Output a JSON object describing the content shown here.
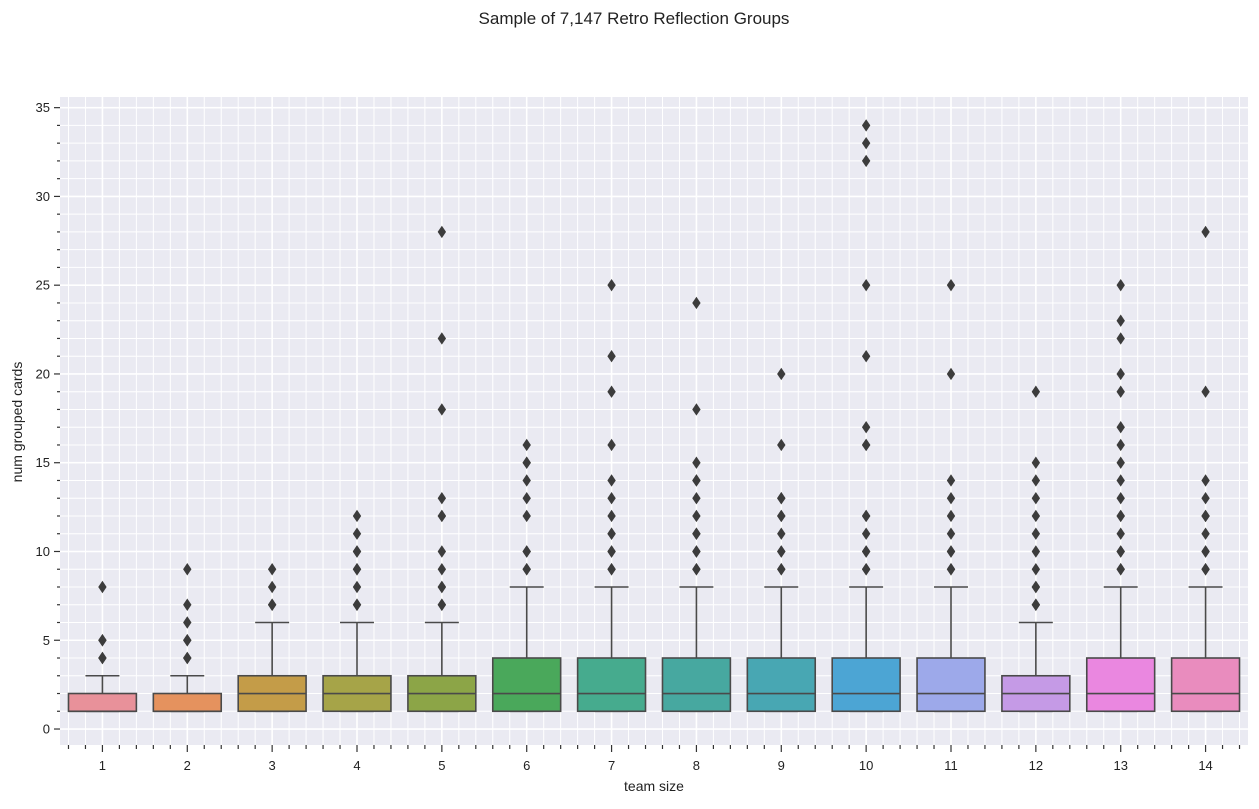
{
  "chart_data": {
    "type": "boxplot",
    "title": "Sample of 7,147 Retro Reflection Groups",
    "xlabel": "team size",
    "ylabel": "num grouped cards",
    "ylim": [
      0,
      35
    ],
    "yticks": [
      0,
      5,
      10,
      15,
      20,
      25,
      30,
      35
    ],
    "grid": true,
    "categories": [
      "1",
      "2",
      "3",
      "4",
      "5",
      "6",
      "7",
      "8",
      "9",
      "10",
      "11",
      "12",
      "13",
      "14"
    ],
    "boxes": [
      {
        "category": "1",
        "color": "#e8919a",
        "q1": 1,
        "median": 1,
        "q3": 2,
        "whisker_low": 1,
        "whisker_high": 3,
        "outliers": [
          4,
          4,
          5,
          5,
          8
        ]
      },
      {
        "category": "2",
        "color": "#e5925e",
        "q1": 1,
        "median": 1,
        "q3": 2,
        "whisker_low": 1,
        "whisker_high": 3,
        "outliers": [
          4,
          4,
          5,
          5,
          6,
          7,
          9
        ]
      },
      {
        "category": "3",
        "color": "#c49c48",
        "q1": 1,
        "median": 2,
        "q3": 3,
        "whisker_low": 1,
        "whisker_high": 6,
        "outliers": [
          7,
          7,
          8,
          9
        ]
      },
      {
        "category": "4",
        "color": "#a6a448",
        "q1": 1,
        "median": 2,
        "q3": 3,
        "whisker_low": 1,
        "whisker_high": 6,
        "outliers": [
          7,
          7,
          8,
          9,
          9,
          10,
          10,
          11,
          12
        ]
      },
      {
        "category": "5",
        "color": "#8ca547",
        "q1": 1,
        "median": 2,
        "q3": 3,
        "whisker_low": 1,
        "whisker_high": 6,
        "outliers": [
          7,
          7,
          8,
          8,
          9,
          10,
          12,
          12,
          13,
          18,
          22,
          28
        ]
      },
      {
        "category": "6",
        "color": "#4aa85b",
        "q1": 1,
        "median": 2,
        "q3": 4,
        "whisker_low": 1,
        "whisker_high": 8,
        "outliers": [
          9,
          9,
          10,
          10,
          12,
          13,
          14,
          15,
          15,
          16
        ]
      },
      {
        "category": "7",
        "color": "#46ab8e",
        "q1": 1,
        "median": 2,
        "q3": 4,
        "whisker_low": 1,
        "whisker_high": 8,
        "outliers": [
          9,
          9,
          10,
          10,
          11,
          11,
          12,
          13,
          14,
          16,
          19,
          21,
          25
        ]
      },
      {
        "category": "8",
        "color": "#47a8a0",
        "q1": 1,
        "median": 2,
        "q3": 4,
        "whisker_low": 1,
        "whisker_high": 8,
        "outliers": [
          9,
          9,
          10,
          10,
          11,
          11,
          12,
          13,
          14,
          14,
          15,
          18,
          24
        ]
      },
      {
        "category": "9",
        "color": "#48a7b3",
        "q1": 1,
        "median": 2,
        "q3": 4,
        "whisker_low": 1,
        "whisker_high": 8,
        "outliers": [
          9,
          9,
          10,
          10,
          11,
          12,
          12,
          13,
          13,
          16,
          20
        ]
      },
      {
        "category": "10",
        "color": "#4ca5d4",
        "q1": 1,
        "median": 2,
        "q3": 4,
        "whisker_low": 1,
        "whisker_high": 8,
        "outliers": [
          9,
          9,
          10,
          10,
          11,
          12,
          12,
          16,
          16,
          17,
          21,
          25,
          32,
          33,
          34
        ]
      },
      {
        "category": "11",
        "color": "#9da9ea",
        "q1": 1,
        "median": 2,
        "q3": 4,
        "whisker_low": 1,
        "whisker_high": 8,
        "outliers": [
          9,
          9,
          10,
          10,
          11,
          12,
          13,
          14,
          20,
          25
        ]
      },
      {
        "category": "12",
        "color": "#c59ae6",
        "q1": 1,
        "median": 2,
        "q3": 3,
        "whisker_low": 1,
        "whisker_high": 6,
        "outliers": [
          7,
          7,
          8,
          8,
          9,
          10,
          11,
          12,
          13,
          14,
          15,
          19
        ]
      },
      {
        "category": "13",
        "color": "#ea87e0",
        "q1": 1,
        "median": 2,
        "q3": 4,
        "whisker_low": 1,
        "whisker_high": 8,
        "outliers": [
          9,
          9,
          10,
          10,
          11,
          12,
          12,
          13,
          14,
          15,
          16,
          17,
          19,
          20,
          22,
          23,
          25
        ]
      },
      {
        "category": "14",
        "color": "#e98cbe",
        "q1": 1,
        "median": 2,
        "q3": 4,
        "whisker_low": 1,
        "whisker_high": 8,
        "outliers": [
          9,
          9,
          10,
          10,
          11,
          12,
          12,
          13,
          14,
          19,
          28
        ]
      }
    ]
  }
}
